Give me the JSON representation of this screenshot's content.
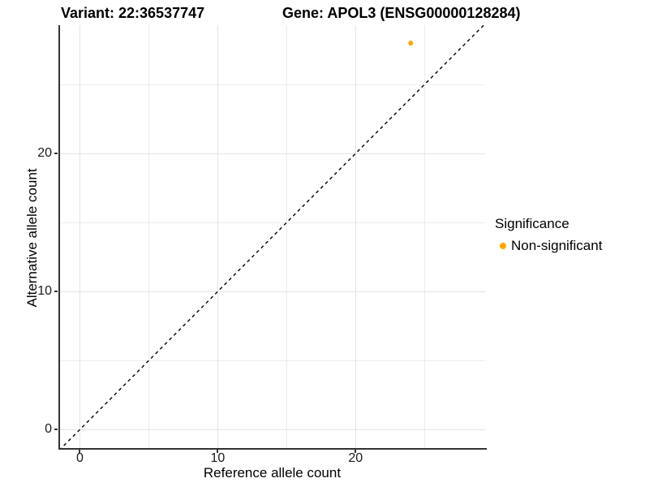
{
  "chart_data": {
    "type": "scatter",
    "title_left": "Variant: 22:36537747",
    "title_right": "Gene: APOL3 (ENSG00000128284)",
    "xlabel": "Reference allele count",
    "ylabel": "Alternative allele count",
    "xlim": [
      -1.5,
      29.4
    ],
    "ylim": [
      -1.4,
      29.3
    ],
    "x_ticks": [
      {
        "value": 0,
        "label": "0"
      },
      {
        "value": 10,
        "label": "10"
      },
      {
        "value": 20,
        "label": "20"
      }
    ],
    "y_ticks": [
      {
        "value": 0,
        "label": "0"
      },
      {
        "value": 10,
        "label": "10"
      },
      {
        "value": 20,
        "label": "20"
      }
    ],
    "x_minor_gridlines": [
      5,
      15,
      25
    ],
    "y_minor_gridlines": [
      5,
      15,
      25
    ],
    "grid": "on",
    "identity_line": {
      "from": [
        -1.5,
        -1.5
      ],
      "to": [
        29.4,
        29.4
      ],
      "style": "dashed",
      "color": "#000000"
    },
    "series": [
      {
        "name": "Non-significant",
        "color": "#FFA500",
        "points": [
          {
            "x": 24,
            "y": 28
          }
        ]
      }
    ],
    "legend": {
      "title": "Significance",
      "position": "right",
      "items": [
        {
          "label": "Non-significant",
          "color": "#FFA500",
          "marker": "circle-icon"
        }
      ]
    },
    "colors": {
      "axis_line": "#333333",
      "major_grid": "#E4E4E4",
      "minor_grid": "#ECECEC",
      "background": "#FFFFFF",
      "point": "#FFA500"
    }
  }
}
